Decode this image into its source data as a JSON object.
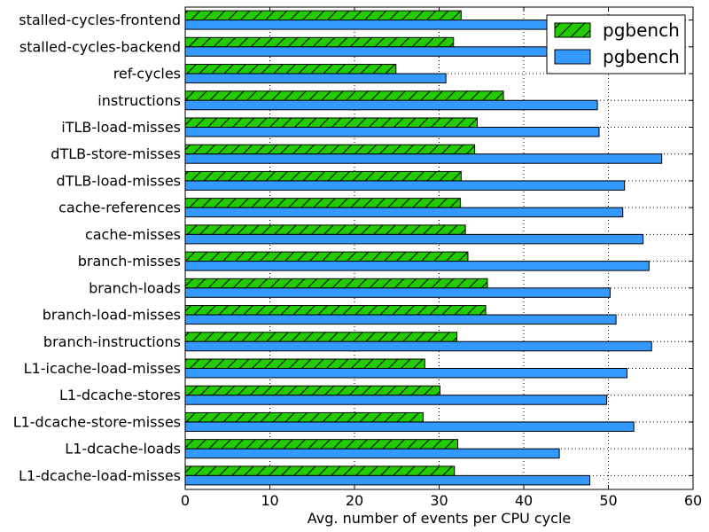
{
  "chart_data": {
    "type": "bar",
    "orientation": "horizontal",
    "xlabel": "Avg. number of events per CPU cycle",
    "ylabel": "",
    "xlim": [
      0,
      60
    ],
    "xticks": [
      0,
      10,
      20,
      30,
      40,
      50,
      60
    ],
    "grid": true,
    "legend_position": "top-right",
    "categories": [
      "stalled-cycles-frontend",
      "stalled-cycles-backend",
      "ref-cycles",
      "instructions",
      "iTLB-load-misses",
      "dTLB-store-misses",
      "dTLB-load-misses",
      "cache-references",
      "cache-misses",
      "branch-misses",
      "branch-loads",
      "branch-load-misses",
      "branch-instructions",
      "L1-icache-load-misses",
      "L1-dcache-stores",
      "L1-dcache-store-misses",
      "L1-dcache-loads",
      "L1-dcache-load-misses"
    ],
    "series": [
      {
        "name": "pgbench",
        "color": "#22cc00",
        "hatch": "diagonal",
        "values": [
          32.6,
          31.7,
          24.9,
          37.6,
          34.5,
          34.2,
          32.6,
          32.5,
          33.1,
          33.4,
          35.7,
          35.5,
          32.1,
          28.3,
          30.1,
          28.1,
          32.2,
          31.8
        ]
      },
      {
        "name": "pgbench",
        "color": "#3399ff",
        "hatch": "none",
        "values": [
          58.0,
          57.0,
          30.8,
          48.7,
          48.9,
          56.3,
          51.9,
          51.7,
          54.1,
          54.8,
          50.2,
          50.9,
          55.1,
          52.2,
          49.8,
          53.0,
          44.2,
          47.8
        ]
      }
    ]
  }
}
